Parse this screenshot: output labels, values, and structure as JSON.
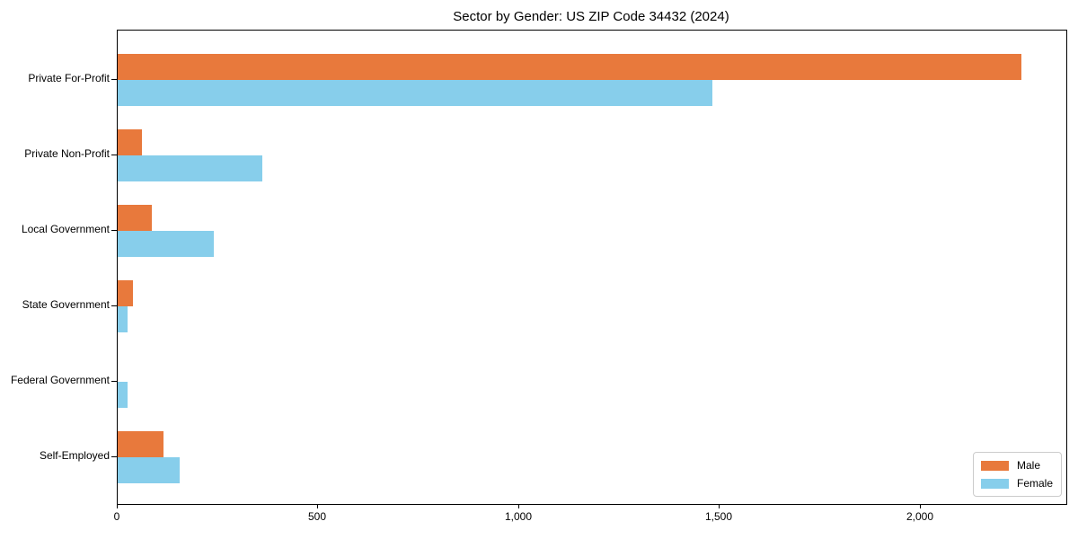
{
  "title": "Sector by Gender: US ZIP Code 34432 (2024)",
  "chart_data": {
    "type": "bar",
    "orientation": "horizontal",
    "title": "Sector by Gender: US ZIP Code 34432 (2024)",
    "xlabel": "",
    "ylabel": "",
    "grid": false,
    "xlim": [
      0,
      2362.5
    ],
    "categories": [
      "Private For-Profit",
      "Private Non-Profit",
      "Local Government",
      "State Government",
      "Federal Government",
      "Self-Employed"
    ],
    "series": [
      {
        "name": "Male",
        "color": "#e8793c",
        "values": [
          2250,
          60,
          85,
          38,
          0,
          115
        ]
      },
      {
        "name": "Female",
        "color": "#87ceeb",
        "values": [
          1480,
          360,
          240,
          25,
          25,
          155
        ]
      }
    ],
    "x_ticks": [
      {
        "value": 0,
        "label": "0"
      },
      {
        "value": 500,
        "label": "500"
      },
      {
        "value": 1000,
        "label": "1,000"
      },
      {
        "value": 1500,
        "label": "1,500"
      },
      {
        "value": 2000,
        "label": "2,000"
      }
    ],
    "legend": {
      "position": "lower-right",
      "entries": [
        "Male",
        "Female"
      ]
    }
  }
}
